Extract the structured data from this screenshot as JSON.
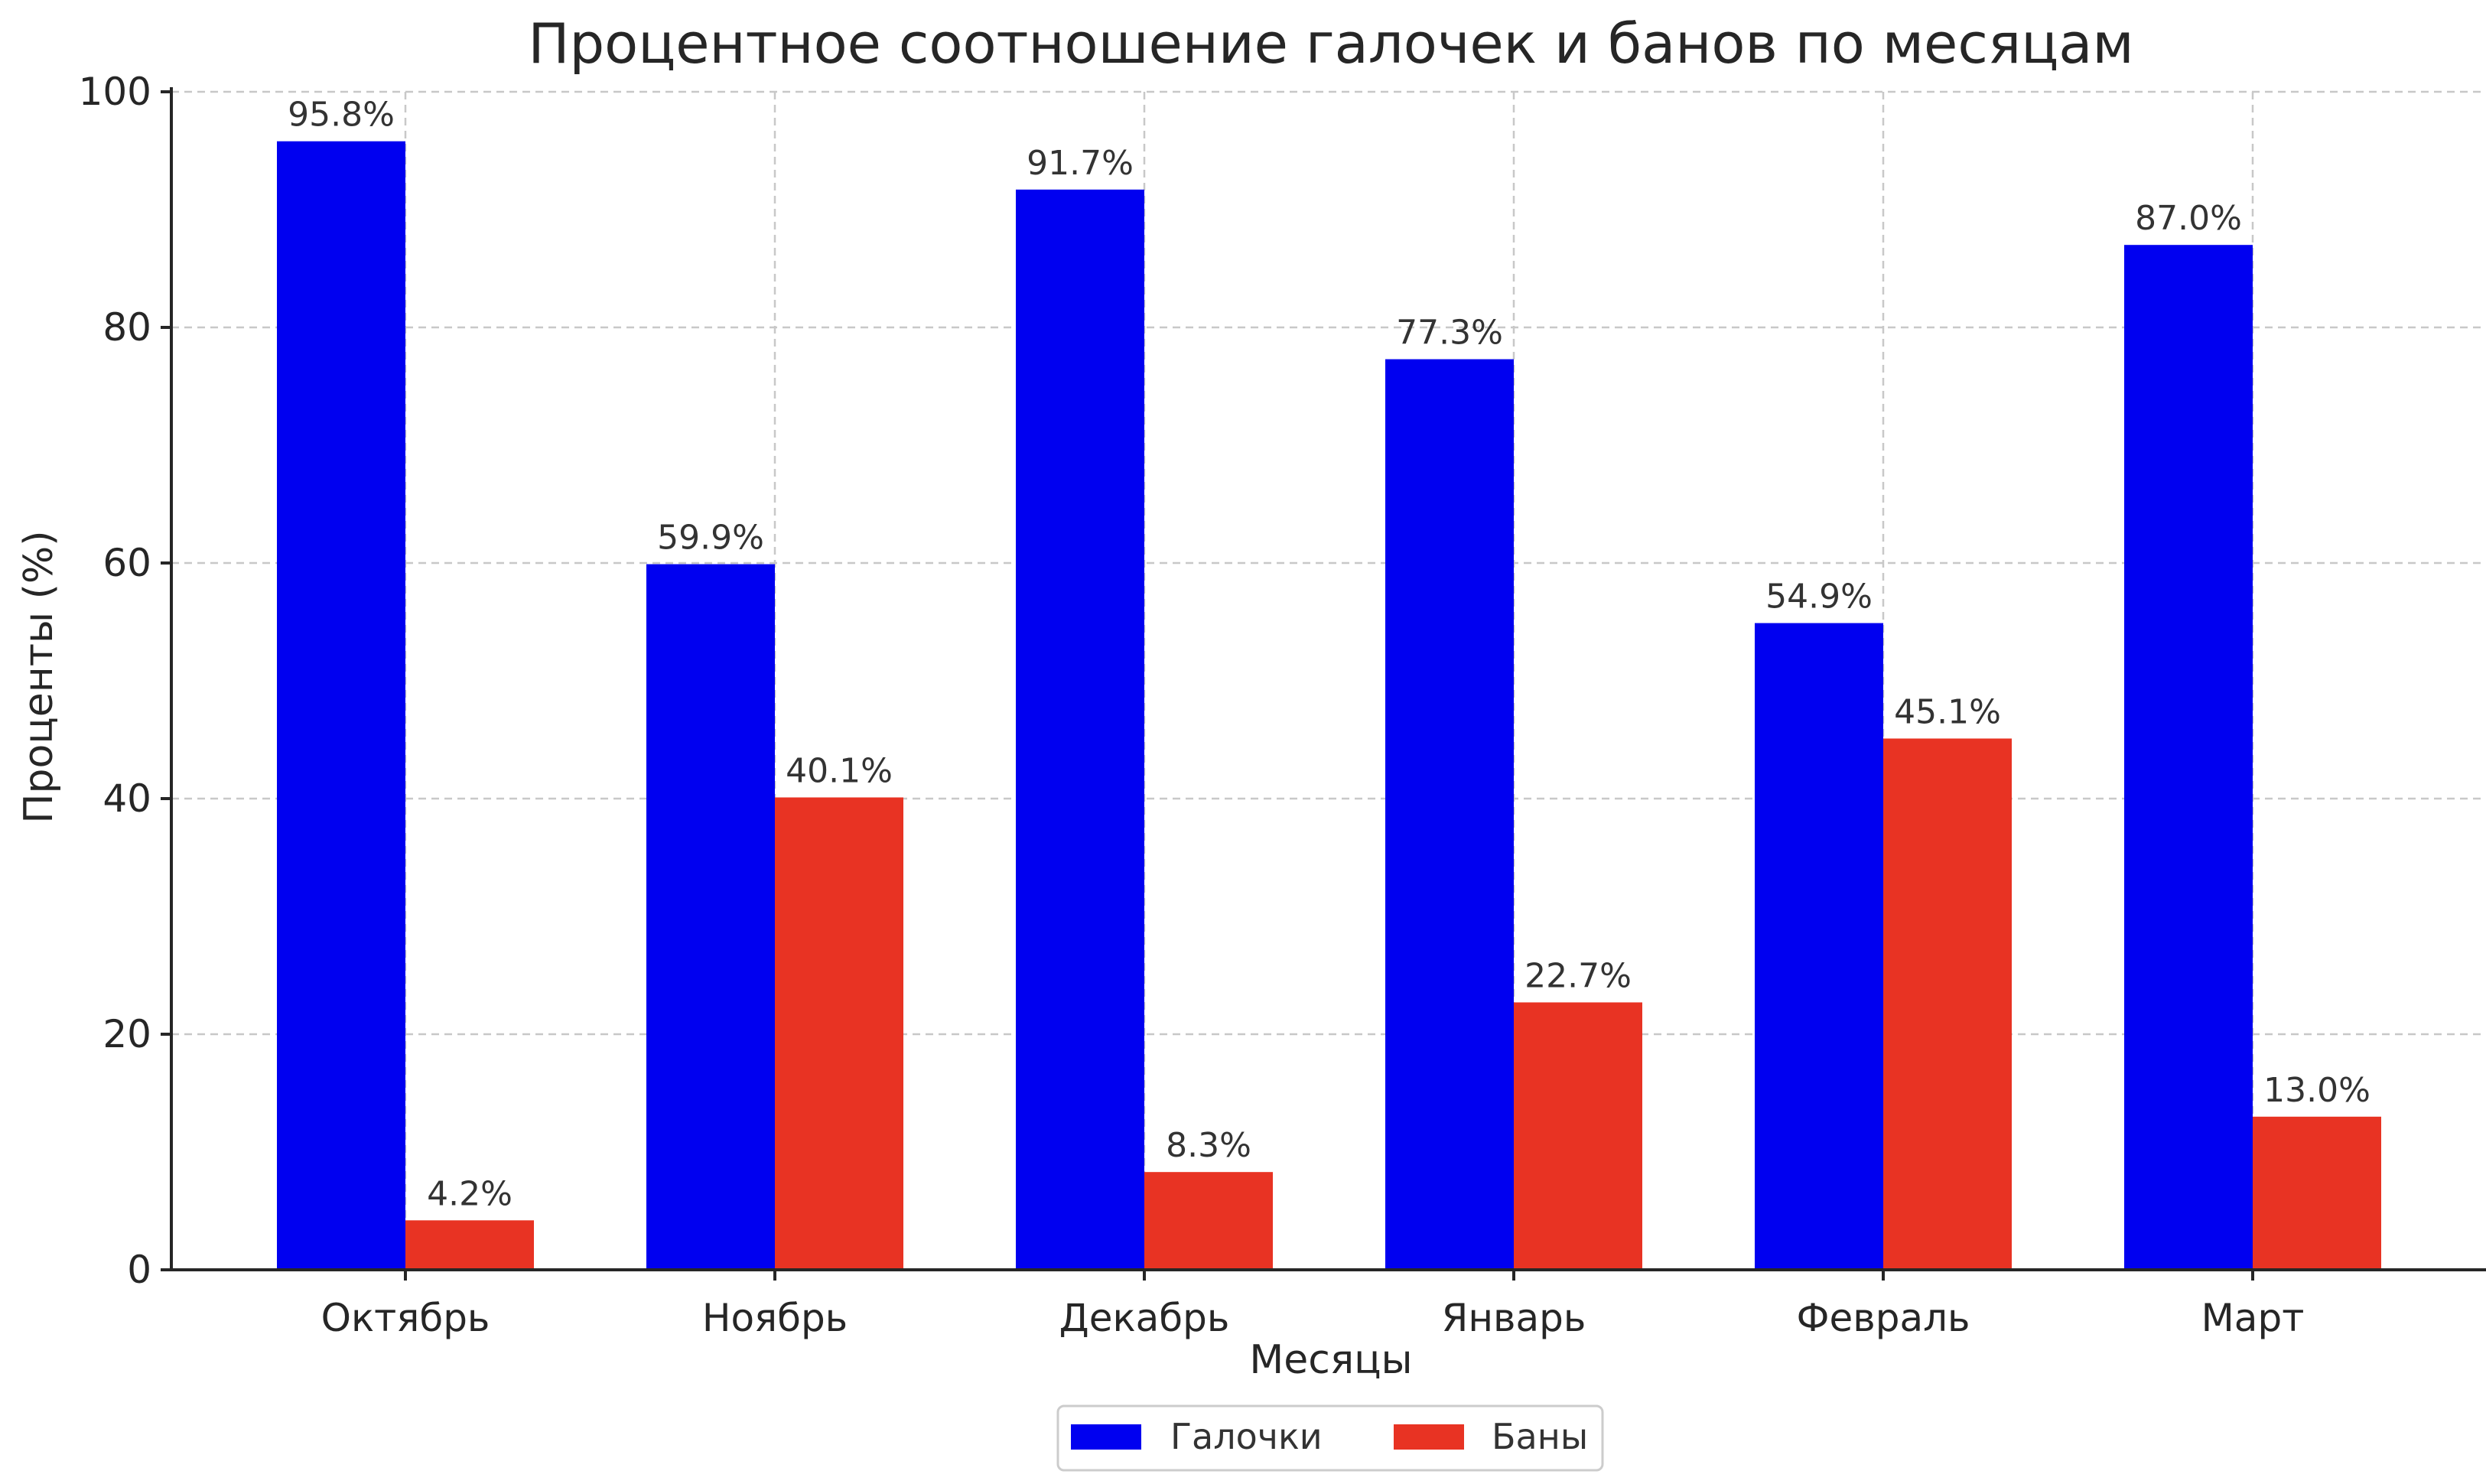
{
  "chart_data": {
    "type": "bar",
    "title": "Процентное соотношение галочек и банов по месяцам",
    "xlabel": "Месяцы",
    "ylabel": "Проценты (%)",
    "ylim": [
      0,
      100
    ],
    "yticks": [
      0,
      20,
      40,
      60,
      80,
      100
    ],
    "grid": true,
    "legend_position": "bottom-center",
    "categories": [
      "Октябрь",
      "Ноябрь",
      "Декабрь",
      "Январь",
      "Февраль",
      "Март"
    ],
    "series": [
      {
        "name": "Галочки",
        "color": "#0000f0",
        "values": [
          95.8,
          59.9,
          91.7,
          77.3,
          54.9,
          87.0
        ],
        "labels": [
          "95.8%",
          "59.9%",
          "91.7%",
          "77.3%",
          "54.9%",
          "87.0%"
        ]
      },
      {
        "name": "Баны",
        "color": "#e83323",
        "values": [
          4.2,
          40.1,
          8.3,
          22.7,
          45.1,
          13.0
        ],
        "labels": [
          "4.2%",
          "40.1%",
          "8.3%",
          "22.7%",
          "45.1%",
          "13.0%"
        ]
      }
    ]
  }
}
